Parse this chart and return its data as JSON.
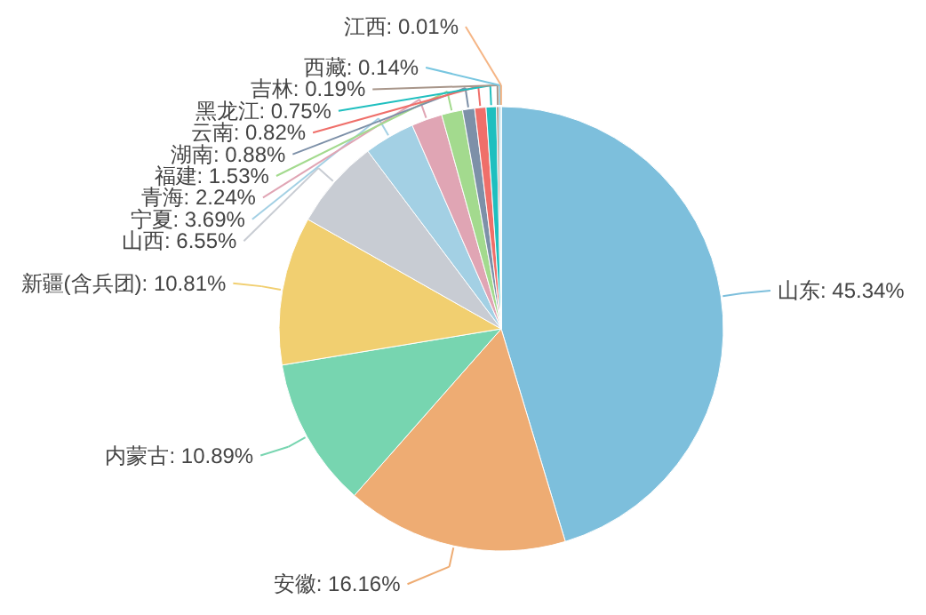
{
  "chart_data": {
    "type": "pie",
    "categories": [
      "山东",
      "安徽",
      "内蒙古",
      "新疆(含兵团)",
      "山西",
      "宁夏",
      "青海",
      "福建",
      "湖南",
      "云南",
      "黑龙江",
      "吉林",
      "西藏",
      "江西"
    ],
    "values": [
      45.34,
      16.16,
      10.89,
      10.81,
      6.55,
      3.69,
      2.24,
      1.53,
      0.88,
      0.82,
      0.75,
      0.19,
      0.14,
      0.01
    ],
    "value_labels": [
      ": 45.34%",
      ": 16.16%",
      ": 10.89%",
      ": 10.81%",
      ": 6.55%",
      ": 3.69%",
      ": 2.24%",
      ": 1.53%",
      ": 0.88%",
      ": 0.82%",
      ": 0.75%",
      ": 0.19%",
      ": 0.14%",
      ": 0.01%"
    ],
    "colors": [
      "#7dbfdc",
      "#eeac73",
      "#77d5b0",
      "#f1cf70",
      "#c8ccd3",
      "#a3d0e4",
      "#e0a5b4",
      "#a3da8e",
      "#7d90a8",
      "#ef6f6a",
      "#1fbfbf",
      "#a8968a",
      "#78c6e0",
      "#f5b585"
    ]
  }
}
